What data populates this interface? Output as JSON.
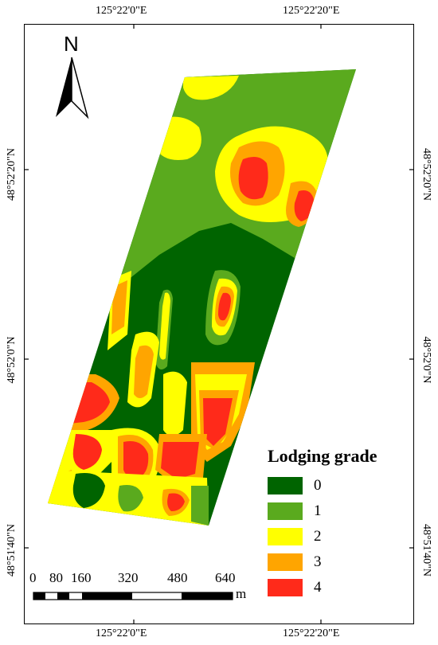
{
  "map": {
    "graticule": {
      "top_lon": [
        "125°22'0\"E",
        "125°22'20\"E"
      ],
      "bottom_lon": [
        "125°22'0\"E",
        "125°22'20\"E"
      ],
      "left_lat": [
        "48°52'20\"N",
        "48°52'0\"N",
        "48°51'40\"N"
      ],
      "right_lat": [
        "48°52'20\"N",
        "48°52'0\"N",
        "48°51'40\"N"
      ]
    },
    "north_arrow": {
      "label": "N",
      "icon": "north-arrow-icon"
    },
    "legend": {
      "title": "Lodging grade",
      "items": [
        {
          "label": "0",
          "color": "#006400"
        },
        {
          "label": "1",
          "color": "#5aaa1e"
        },
        {
          "label": "2",
          "color": "#ffff00"
        },
        {
          "label": "3",
          "color": "#ffa500"
        },
        {
          "label": "4",
          "color": "#ff2a1a"
        }
      ]
    },
    "scale_bar": {
      "ticks": [
        "0",
        "80",
        "160",
        "320",
        "480",
        "640"
      ],
      "unit": "m"
    }
  }
}
